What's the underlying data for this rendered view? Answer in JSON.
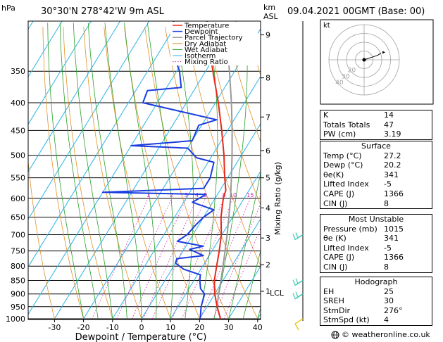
{
  "header": {
    "location": "30°30'N  278°42'W  9m  ASL",
    "datetime": "09.04.2021  00GMT  (Base: 00)",
    "hpa_label": "hPa",
    "km_label": "km",
    "asl_label": "ASL"
  },
  "chart_data": {
    "type": "skewt",
    "xlabel": "Dewpoint / Temperature (°C)",
    "ylabel_right": "Mixing Ratio (g/kg)",
    "xlim": [
      -35,
      40
    ],
    "x_ticks": [
      -30,
      -20,
      -10,
      0,
      10,
      20,
      30,
      40
    ],
    "pressure_levels": [
      350,
      400,
      450,
      500,
      550,
      600,
      650,
      700,
      750,
      800,
      850,
      900,
      950,
      1000
    ],
    "km_ticks": [
      {
        "label": "9",
        "p": 300
      },
      {
        "label": "8",
        "p": 360
      },
      {
        "label": "7",
        "p": 425
      },
      {
        "label": "6",
        "p": 490
      },
      {
        "label": "5",
        "p": 550
      },
      {
        "label": "4",
        "p": 625
      },
      {
        "label": "3",
        "p": 710
      },
      {
        "label": "2",
        "p": 795
      },
      {
        "label": "1",
        "p": 890
      }
    ],
    "lcl_label": "LCL",
    "lcl_p": 895,
    "mixing_ratio_labels": [
      "1",
      "2",
      "3",
      "4",
      "5",
      "8",
      "10",
      "15",
      "20",
      "25"
    ],
    "mixing_ratio_values": [
      1,
      2,
      3,
      4,
      5,
      8,
      10,
      15,
      20,
      25
    ],
    "legend": [
      "Temperature",
      "Dewpoint",
      "Parcel Trajectory",
      "Dry Adiabat",
      "Wet Adiabat",
      "Isotherm",
      "Mixing Ratio"
    ],
    "colors": {
      "temperature": "#e8281e",
      "dewpoint": "#1a3de0",
      "parcel": "#9a9a9a",
      "dry_adiabat": "#e0922a",
      "wet_adiabat": "#2aa02a",
      "isotherm": "#2ab4e8",
      "mixing_ratio": "#d21fb4",
      "wind": "#3cc8b4"
    },
    "temperature": [
      {
        "p": 1000,
        "t": 27.2
      },
      {
        "p": 950,
        "t": 23.5
      },
      {
        "p": 900,
        "t": 20.0
      },
      {
        "p": 850,
        "t": 17.0
      },
      {
        "p": 800,
        "t": 14.8
      },
      {
        "p": 750,
        "t": 12.5
      },
      {
        "p": 700,
        "t": 9.8
      },
      {
        "p": 650,
        "t": 6.0
      },
      {
        "p": 600,
        "t": 2.8
      },
      {
        "p": 580,
        "t": 2.0
      },
      {
        "p": 550,
        "t": -1.0
      },
      {
        "p": 500,
        "t": -6.0
      },
      {
        "p": 450,
        "t": -12.0
      },
      {
        "p": 400,
        "t": -19.0
      },
      {
        "p": 350,
        "t": -27.5
      },
      {
        "p": 300,
        "t": -37.0
      },
      {
        "p": 280,
        "t": -40.5
      }
    ],
    "dewpoint": [
      {
        "p": 1000,
        "t": 20.2
      },
      {
        "p": 950,
        "t": 18.0
      },
      {
        "p": 900,
        "t": 16.5
      },
      {
        "p": 880,
        "t": 14.0
      },
      {
        "p": 850,
        "t": 12.0
      },
      {
        "p": 830,
        "t": 11.0
      },
      {
        "p": 810,
        "t": 4.0
      },
      {
        "p": 790,
        "t": 0.0
      },
      {
        "p": 775,
        "t": -0.5
      },
      {
        "p": 765,
        "t": 8.0
      },
      {
        "p": 745,
        "t": 2.0
      },
      {
        "p": 735,
        "t": 6.0
      },
      {
        "p": 720,
        "t": -4.0
      },
      {
        "p": 700,
        "t": -2.0
      },
      {
        "p": 670,
        "t": -1.0
      },
      {
        "p": 650,
        "t": 0.0
      },
      {
        "p": 630,
        "t": 2.0
      },
      {
        "p": 610,
        "t": -7.0
      },
      {
        "p": 590,
        "t": -4.0
      },
      {
        "p": 585,
        "t": -40.0
      },
      {
        "p": 575,
        "t": -6.0
      },
      {
        "p": 550,
        "t": -6.0
      },
      {
        "p": 515,
        "t": -8.0
      },
      {
        "p": 505,
        "t": -15.0
      },
      {
        "p": 485,
        "t": -20.0
      },
      {
        "p": 480,
        "t": -40.0
      },
      {
        "p": 470,
        "t": -20.0
      },
      {
        "p": 440,
        "t": -21.0
      },
      {
        "p": 430,
        "t": -16.0
      },
      {
        "p": 400,
        "t": -45.0
      },
      {
        "p": 380,
        "t": -46.0
      },
      {
        "p": 375,
        "t": -35.0
      },
      {
        "p": 350,
        "t": -39.0
      },
      {
        "p": 320,
        "t": -46.0
      },
      {
        "p": 300,
        "t": -49.0
      },
      {
        "p": 280,
        "t": -52.0
      }
    ],
    "parcel": [
      {
        "p": 1000,
        "t": 27.2
      },
      {
        "p": 950,
        "t": 23.5
      },
      {
        "p": 900,
        "t": 21.3
      },
      {
        "p": 850,
        "t": 19.3
      },
      {
        "p": 800,
        "t": 17.0
      },
      {
        "p": 750,
        "t": 14.5
      },
      {
        "p": 700,
        "t": 11.8
      },
      {
        "p": 650,
        "t": 8.7
      },
      {
        "p": 600,
        "t": 5.3
      },
      {
        "p": 550,
        "t": 1.3
      },
      {
        "p": 500,
        "t": -3.2
      },
      {
        "p": 450,
        "t": -8.4
      },
      {
        "p": 400,
        "t": -14.5
      },
      {
        "p": 350,
        "t": -21.8
      },
      {
        "p": 300,
        "t": -30.5
      }
    ],
    "wind_barb_pressures": [
      1000,
      900,
      850,
      700
    ],
    "hodograph": {
      "label": "kt",
      "ring_labels": [
        "40",
        "30",
        "20"
      ],
      "points": [
        [
          0,
          0
        ],
        [
          6,
          2
        ],
        [
          12,
          4
        ],
        [
          15,
          6
        ]
      ]
    }
  },
  "indices": [
    {
      "label": "K",
      "value": "14"
    },
    {
      "label": "Totals Totals",
      "value": "47"
    },
    {
      "label": "PW (cm)",
      "value": "3.19"
    }
  ],
  "surface": {
    "title": "Surface",
    "rows": [
      {
        "label": "Temp (°C)",
        "value": "27.2"
      },
      {
        "label": "Dewp (°C)",
        "value": "20.2"
      },
      {
        "label": "θe(K)",
        "value": "341"
      },
      {
        "label": "Lifted Index",
        "value": "-5"
      },
      {
        "label": "CAPE (J)",
        "value": "1366"
      },
      {
        "label": "CIN (J)",
        "value": "8"
      }
    ]
  },
  "most_unstable": {
    "title": "Most Unstable",
    "rows": [
      {
        "label": "Pressure (mb)",
        "value": "1015"
      },
      {
        "label": "θe (K)",
        "value": "341"
      },
      {
        "label": "Lifted Index",
        "value": "-5"
      },
      {
        "label": "CAPE (J)",
        "value": "1366"
      },
      {
        "label": "CIN (J)",
        "value": "8"
      }
    ]
  },
  "hodograph_table": {
    "title": "Hodograph",
    "rows": [
      {
        "label": "EH",
        "value": "25"
      },
      {
        "label": "SREH",
        "value": "30"
      },
      {
        "label": "StmDir",
        "value": "276°"
      },
      {
        "label": "StmSpd (kt)",
        "value": "4"
      }
    ]
  },
  "footer": {
    "copyright": "© weatheronline.co.uk"
  }
}
